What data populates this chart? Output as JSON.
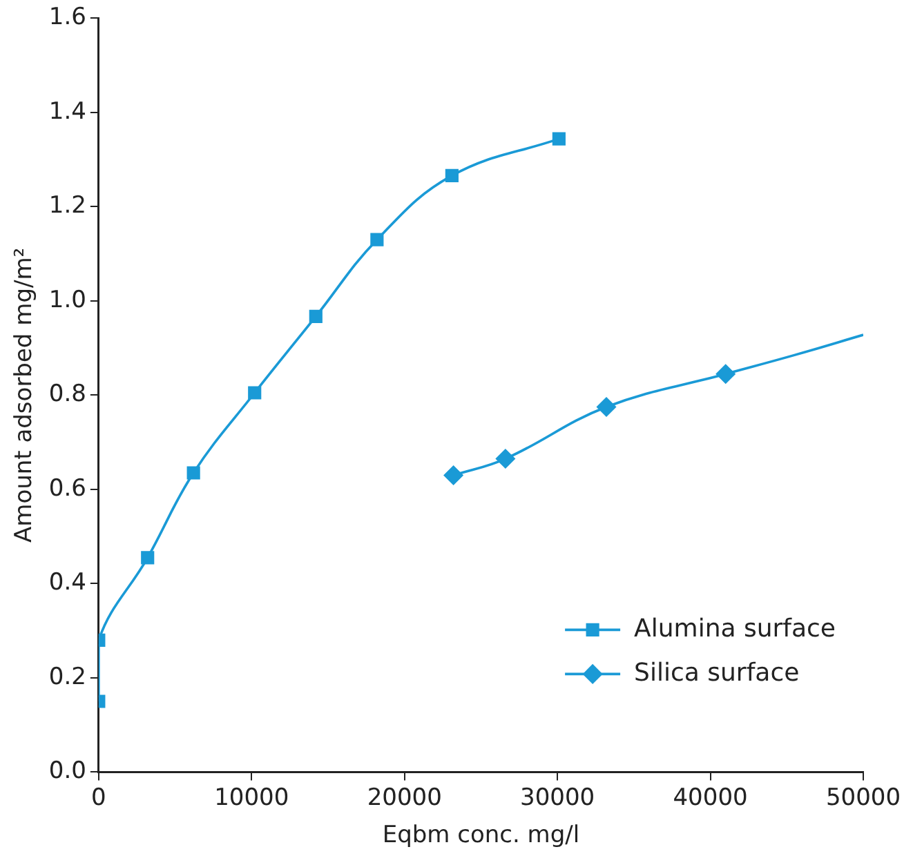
{
  "chart_data": {
    "type": "line",
    "xlabel": "Eqbm conc. mg/l",
    "ylabel": "Amount adsorbed mg/m²",
    "xlim": [
      0,
      50000
    ],
    "xticks": [
      0,
      10000,
      20000,
      30000,
      40000,
      50000
    ],
    "ylim": [
      0,
      1.6
    ],
    "yticks": [
      {
        "value": 0,
        "label": "0.0"
      },
      {
        "value": 0.2,
        "label": "0.2"
      },
      {
        "value": 0.4,
        "label": "0.4"
      },
      {
        "value": 0.6,
        "label": "0.6"
      },
      {
        "value": 0.8,
        "label": "0.8"
      },
      {
        "value": 1.0,
        "label": "1.0"
      },
      {
        "value": 1.2,
        "label": "1.2"
      },
      {
        "value": 1.4,
        "label": "1.4"
      },
      {
        "value": 1.6,
        "label": "1.6"
      }
    ],
    "grid": false,
    "legend": "bottom right",
    "series": [
      {
        "name": "Alumina surface",
        "color": "#1a9ad6",
        "marker": "square",
        "x": [
          0,
          0,
          3200,
          6200,
          10200,
          14200,
          18200,
          23100,
          30100
        ],
        "values": [
          0.15,
          0.28,
          0.455,
          0.635,
          0.805,
          0.967,
          1.13,
          1.266,
          1.344
        ]
      },
      {
        "name": "Silica surface",
        "color": "#1a9ad6",
        "marker": "diamond",
        "x": [
          23200,
          26600,
          33200,
          41000
        ],
        "values": [
          0.63,
          0.665,
          0.775,
          0.845
        ]
      },
      {
        "color": "#1a9ad6",
        "marker": "none",
        "x": [
          41000,
          45500,
          50000
        ],
        "values": [
          0.845,
          0.885,
          0.928
        ]
      }
    ]
  }
}
